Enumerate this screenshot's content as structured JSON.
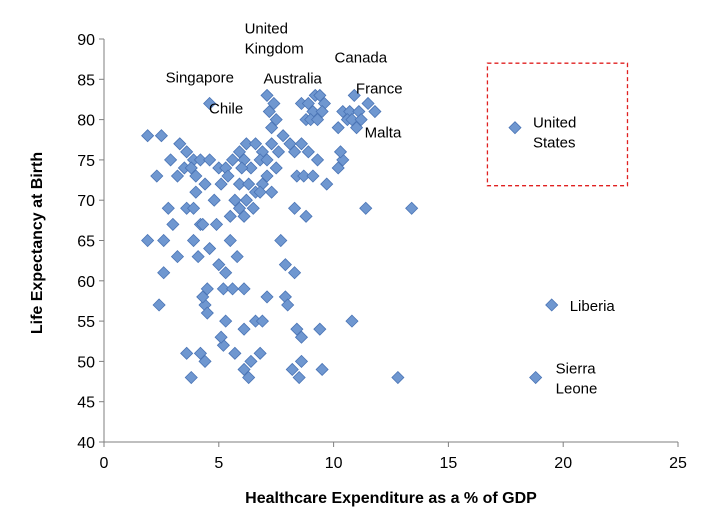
{
  "chart_data": {
    "type": "scatter",
    "title": "",
    "xlabel": "Healthcare Expenditure as a % of GDP",
    "ylabel": "Life Expectancy at Birth",
    "xlim": [
      0,
      25
    ],
    "ylim": [
      40,
      90
    ],
    "xticks": [
      "0",
      "5",
      "10",
      "15",
      "20",
      "25"
    ],
    "yticks": [
      "40",
      "45",
      "50",
      "55",
      "60",
      "65",
      "70",
      "75",
      "80",
      "85",
      "90"
    ],
    "grid": false,
    "legend": "none",
    "marker": "diamond",
    "marker_color": "#6f97d0",
    "marker_edge_color": "#4a74b5",
    "highlight_box_color": "#e02020",
    "highlight_box": {
      "x": [
        16.7,
        22.8
      ],
      "y": [
        71.8,
        87
      ]
    },
    "annotations": [
      {
        "lines": [
          "United",
          "Kingdom"
        ],
        "x": 8.3,
        "y": 83
      },
      {
        "lines": [
          "Canada"
        ],
        "x": 11,
        "y": 83
      },
      {
        "lines": [
          "Singapore"
        ],
        "x": 4.6,
        "y": 82
      },
      {
        "lines": [
          "Australia"
        ],
        "x": 9.3,
        "y": 82
      },
      {
        "lines": [
          "France"
        ],
        "x": 11.8,
        "y": 82
      },
      {
        "lines": [
          "Chile"
        ],
        "x": 7.1,
        "y": 82
      },
      {
        "lines": [
          "Malta"
        ],
        "x": 11.7,
        "y": 80
      },
      {
        "lines": [
          "United",
          "States"
        ],
        "x": 17.9,
        "y": 79
      },
      {
        "lines": [
          "Liberia"
        ],
        "x": 19.5,
        "y": 57
      },
      {
        "lines": [
          "Sierra",
          "Leone"
        ],
        "x": 18.8,
        "y": 48
      }
    ],
    "points": [
      [
        4.6,
        82
      ],
      [
        7.1,
        83
      ],
      [
        7.4,
        82
      ],
      [
        7.2,
        81
      ],
      [
        7.5,
        80
      ],
      [
        7.3,
        79
      ],
      [
        8.6,
        82
      ],
      [
        9.2,
        83
      ],
      [
        9.4,
        83
      ],
      [
        8.9,
        82
      ],
      [
        9.1,
        81
      ],
      [
        9.6,
        82
      ],
      [
        8.8,
        80
      ],
      [
        9.0,
        80
      ],
      [
        9.3,
        80
      ],
      [
        9.5,
        81
      ],
      [
        10.4,
        81
      ],
      [
        10.9,
        83
      ],
      [
        10.7,
        81
      ],
      [
        11.1,
        81
      ],
      [
        11.5,
        82
      ],
      [
        11.8,
        81
      ],
      [
        10.6,
        80
      ],
      [
        11.0,
        79
      ],
      [
        10.2,
        79
      ],
      [
        10.8,
        80
      ],
      [
        11.2,
        80
      ],
      [
        17.9,
        79
      ],
      [
        19.5,
        57
      ],
      [
        18.8,
        48
      ],
      [
        1.9,
        78
      ],
      [
        2.5,
        78
      ],
      [
        3.3,
        77
      ],
      [
        3.6,
        76
      ],
      [
        3.9,
        75
      ],
      [
        3.5,
        74
      ],
      [
        4.2,
        75
      ],
      [
        4.6,
        75
      ],
      [
        3.2,
        73
      ],
      [
        4.0,
        73
      ],
      [
        5.0,
        74
      ],
      [
        5.3,
        74
      ],
      [
        5.6,
        75
      ],
      [
        5.9,
        76
      ],
      [
        6.2,
        77
      ],
      [
        6.6,
        77
      ],
      [
        6.1,
        75
      ],
      [
        6.4,
        74
      ],
      [
        6.9,
        76
      ],
      [
        7.3,
        77
      ],
      [
        7.6,
        76
      ],
      [
        7.8,
        78
      ],
      [
        8.1,
        77
      ],
      [
        8.3,
        76
      ],
      [
        8.6,
        77
      ],
      [
        8.9,
        76
      ],
      [
        5.1,
        72
      ],
      [
        5.4,
        73
      ],
      [
        5.9,
        72
      ],
      [
        6.3,
        72
      ],
      [
        6.9,
        72
      ],
      [
        7.1,
        73
      ],
      [
        6.6,
        71
      ],
      [
        7.3,
        71
      ],
      [
        2.9,
        75
      ],
      [
        2.3,
        73
      ],
      [
        2.6,
        65
      ],
      [
        1.9,
        65
      ],
      [
        2.6,
        61
      ],
      [
        2.8,
        69
      ],
      [
        3.2,
        63
      ],
      [
        3.6,
        69
      ],
      [
        3.9,
        65
      ],
      [
        4.2,
        67
      ],
      [
        4.6,
        64
      ],
      [
        5.0,
        62
      ],
      [
        5.3,
        61
      ],
      [
        5.5,
        65
      ],
      [
        5.8,
        63
      ],
      [
        6.1,
        68
      ],
      [
        5.2,
        59
      ],
      [
        5.6,
        59
      ],
      [
        6.1,
        59
      ],
      [
        4.5,
        59
      ],
      [
        4.4,
        57
      ],
      [
        4.5,
        56
      ],
      [
        4.3,
        58
      ],
      [
        4.0,
        71
      ],
      [
        3.9,
        69
      ],
      [
        4.3,
        67
      ],
      [
        4.9,
        67
      ],
      [
        5.5,
        68
      ],
      [
        5.9,
        69
      ],
      [
        6.2,
        70
      ],
      [
        6.5,
        69
      ],
      [
        6.8,
        71
      ],
      [
        3.6,
        51
      ],
      [
        4.2,
        51
      ],
      [
        4.4,
        50
      ],
      [
        3.8,
        48
      ],
      [
        5.2,
        52
      ],
      [
        5.1,
        53
      ],
      [
        5.7,
        51
      ],
      [
        6.1,
        54
      ],
      [
        6.4,
        50
      ],
      [
        6.1,
        49
      ],
      [
        6.3,
        48
      ],
      [
        6.6,
        55
      ],
      [
        6.9,
        55
      ],
      [
        6.8,
        51
      ],
      [
        7.1,
        58
      ],
      [
        7.7,
        65
      ],
      [
        7.9,
        58
      ],
      [
        8.0,
        57
      ],
      [
        8.3,
        61
      ],
      [
        8.2,
        49
      ],
      [
        8.5,
        48
      ],
      [
        8.6,
        50
      ],
      [
        8.4,
        54
      ],
      [
        8.6,
        53
      ],
      [
        9.4,
        54
      ],
      [
        9.5,
        49
      ],
      [
        10.8,
        55
      ],
      [
        12.8,
        48
      ],
      [
        8.3,
        69
      ],
      [
        8.8,
        68
      ],
      [
        8.4,
        73
      ],
      [
        8.7,
        73
      ],
      [
        9.1,
        73
      ],
      [
        9.7,
        72
      ],
      [
        10.2,
        74
      ],
      [
        10.4,
        75
      ],
      [
        10.3,
        76
      ],
      [
        9.3,
        75
      ],
      [
        11.4,
        69
      ],
      [
        13.4,
        69
      ],
      [
        2.4,
        57
      ],
      [
        7.9,
        62
      ],
      [
        5.3,
        55
      ],
      [
        3.0,
        67
      ],
      [
        4.1,
        63
      ],
      [
        5.7,
        70
      ],
      [
        6.0,
        74
      ],
      [
        6.8,
        75
      ],
      [
        7.5,
        74
      ],
      [
        7.1,
        75
      ],
      [
        4.8,
        70
      ],
      [
        3.8,
        74
      ],
      [
        4.4,
        72
      ]
    ]
  }
}
